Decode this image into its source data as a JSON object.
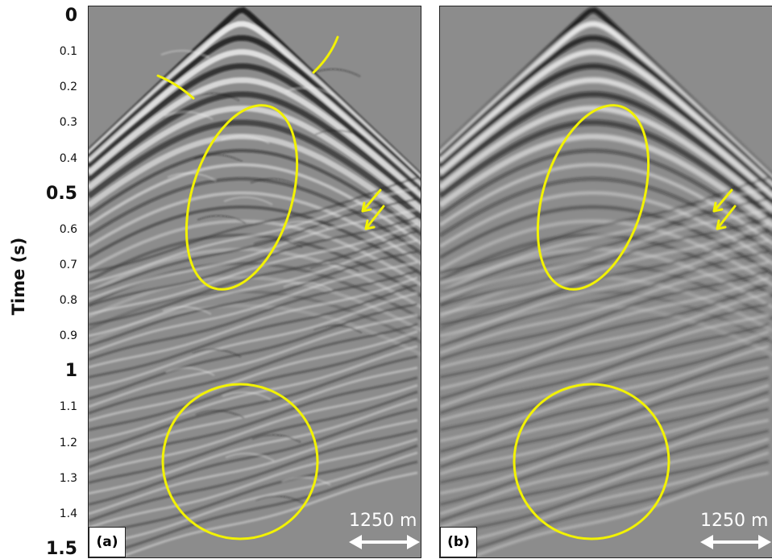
{
  "axis": {
    "title": "Time (s)",
    "ticks": [
      {
        "value": 0,
        "label": "0",
        "major": true
      },
      {
        "value": 0.1,
        "label": "0.1",
        "major": false
      },
      {
        "value": 0.2,
        "label": "0.2",
        "major": false
      },
      {
        "value": 0.3,
        "label": "0.3",
        "major": false
      },
      {
        "value": 0.4,
        "label": "0.4",
        "major": false
      },
      {
        "value": 0.5,
        "label": "0.5",
        "major": true
      },
      {
        "value": 0.6,
        "label": "0.6",
        "major": false
      },
      {
        "value": 0.7,
        "label": "0.7",
        "major": false
      },
      {
        "value": 0.8,
        "label": "0.8",
        "major": false
      },
      {
        "value": 0.9,
        "label": "0.9",
        "major": false
      },
      {
        "value": 1,
        "label": "1",
        "major": true
      },
      {
        "value": 1.1,
        "label": "1.1",
        "major": false
      },
      {
        "value": 1.2,
        "label": "1.2",
        "major": false
      },
      {
        "value": 1.3,
        "label": "1.3",
        "major": false
      },
      {
        "value": 1.4,
        "label": "1.4",
        "major": false
      },
      {
        "value": 1.5,
        "label": "1.5",
        "major": true
      }
    ]
  },
  "panels": [
    {
      "id": "a",
      "label": "(a)",
      "scale_bar": "1250 m"
    },
    {
      "id": "b",
      "label": "(b)",
      "scale_bar": "1250 m"
    }
  ],
  "colors": {
    "annotation": "#f2f200",
    "background_gray": "#8c8c8c",
    "scale_bar": "#ffffff"
  }
}
